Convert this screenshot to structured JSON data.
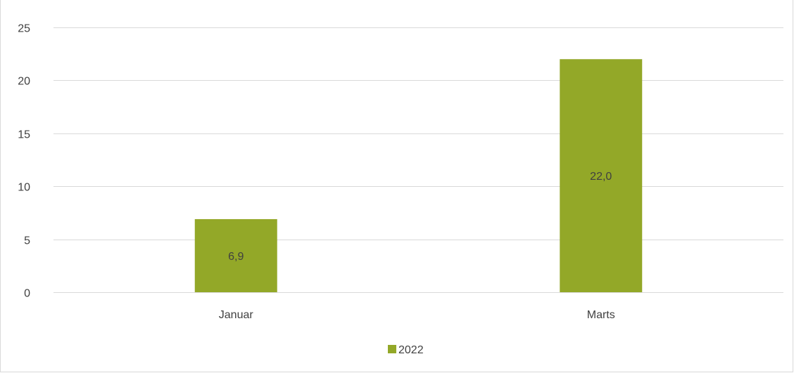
{
  "chart_data": {
    "type": "bar",
    "title": "",
    "categories": [
      "Januar",
      "Marts"
    ],
    "series": [
      {
        "name": "2022",
        "values": [
          6.9,
          22.0
        ],
        "data_labels": [
          "6,9",
          "22,0"
        ],
        "color": "#93a828"
      }
    ],
    "y_ticks": [
      "0",
      "5",
      "10",
      "15",
      "20",
      "25"
    ],
    "ylim": [
      0,
      25
    ],
    "xlabel": "",
    "ylabel": "",
    "grid": true,
    "legend_position": "bottom",
    "gridline_color": "#d9d9d9",
    "text_color": "#404040"
  }
}
